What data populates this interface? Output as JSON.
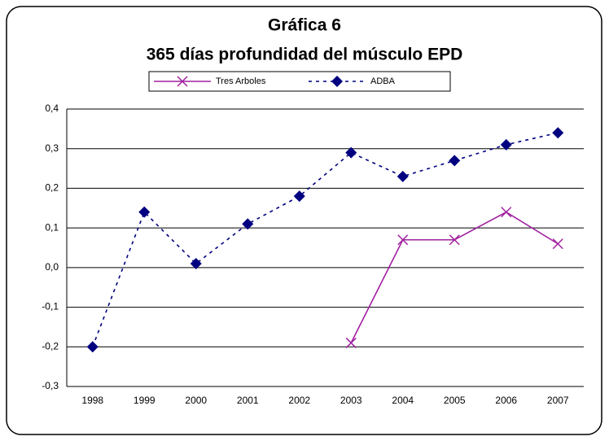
{
  "chart_data": {
    "type": "line",
    "title": "Gráfica 6",
    "subtitle": "365 días profundidad del músculo EPD",
    "categories": [
      "1998",
      "1999",
      "2000",
      "2001",
      "2002",
      "2003",
      "2004",
      "2005",
      "2006",
      "2007"
    ],
    "series": [
      {
        "name": "Tres Arboles",
        "color": "#a020a0",
        "marker": "x",
        "dash": false,
        "values": [
          null,
          null,
          null,
          null,
          null,
          -0.19,
          0.07,
          0.07,
          0.14,
          0.06
        ]
      },
      {
        "name": "ADBA",
        "color": "#000080",
        "marker": "diamond",
        "dash": true,
        "values": [
          -0.2,
          0.14,
          0.01,
          0.11,
          0.18,
          0.29,
          0.23,
          0.27,
          0.31,
          0.34
        ]
      }
    ],
    "ylim": [
      -0.3,
      0.4
    ],
    "yticks": [
      {
        "value": -0.3,
        "label": "-0,3"
      },
      {
        "value": -0.2,
        "label": "-0,2"
      },
      {
        "value": -0.1,
        "label": "-0,1"
      },
      {
        "value": 0,
        "label": "0,0"
      },
      {
        "value": 0.1,
        "label": "0,1"
      },
      {
        "value": 0.2,
        "label": "0,2"
      },
      {
        "value": 0.3,
        "label": "0,3"
      },
      {
        "value": 0.4,
        "label": "0,4"
      }
    ],
    "grid": true,
    "legend": "top"
  }
}
